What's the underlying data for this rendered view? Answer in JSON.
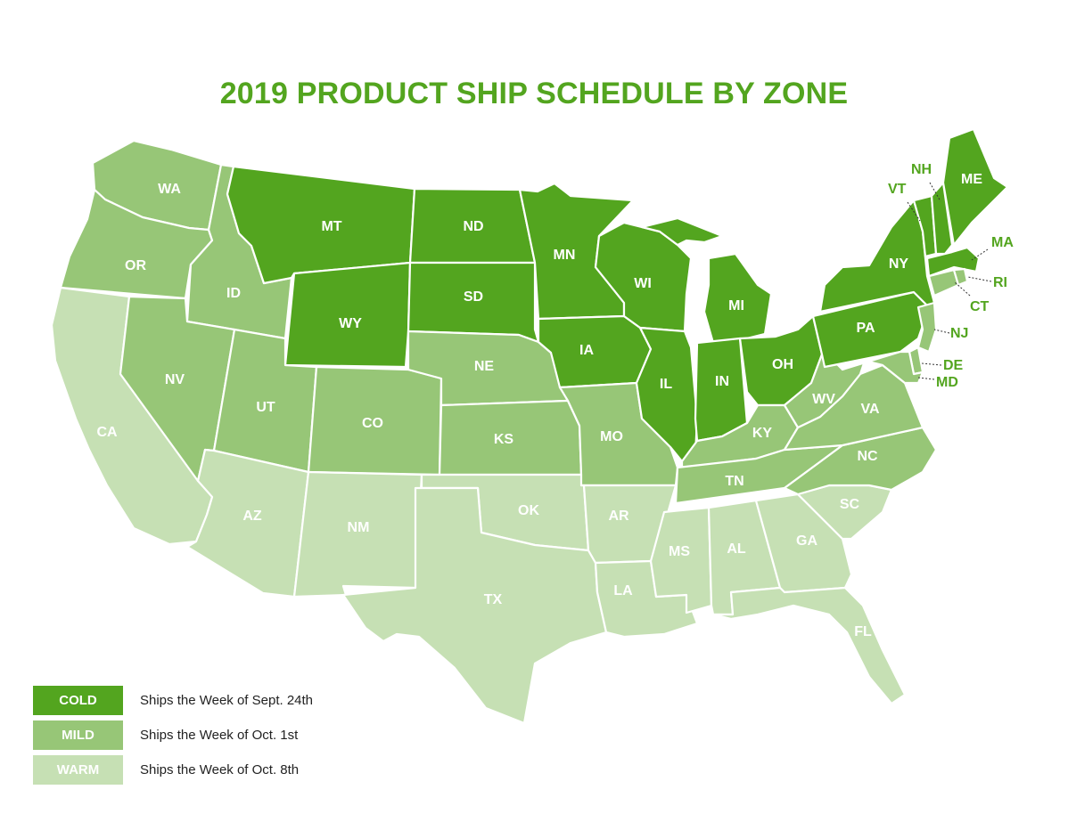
{
  "title": "2019 PRODUCT SHIP SCHEDULE BY ZONE",
  "colors": {
    "cold": "#53a51f",
    "mild": "#97c677",
    "warm": "#c6e0b4"
  },
  "zones": [
    {
      "key": "cold",
      "label": "COLD",
      "description": "Ships the Week of Sept. 24th"
    },
    {
      "key": "mild",
      "label": "MILD",
      "description": "Ships the Week of Oct. 1st"
    },
    {
      "key": "warm",
      "label": "WARM",
      "description": "Ships the Week of Oct. 8th"
    }
  ],
  "states": [
    {
      "code": "WA",
      "zone": "mild"
    },
    {
      "code": "OR",
      "zone": "mild"
    },
    {
      "code": "CA",
      "zone": "warm"
    },
    {
      "code": "ID",
      "zone": "mild"
    },
    {
      "code": "NV",
      "zone": "mild"
    },
    {
      "code": "MT",
      "zone": "cold"
    },
    {
      "code": "WY",
      "zone": "cold"
    },
    {
      "code": "UT",
      "zone": "mild"
    },
    {
      "code": "AZ",
      "zone": "warm"
    },
    {
      "code": "CO",
      "zone": "mild"
    },
    {
      "code": "NM",
      "zone": "warm"
    },
    {
      "code": "ND",
      "zone": "cold"
    },
    {
      "code": "SD",
      "zone": "cold"
    },
    {
      "code": "NE",
      "zone": "mild"
    },
    {
      "code": "KS",
      "zone": "mild"
    },
    {
      "code": "OK",
      "zone": "warm"
    },
    {
      "code": "TX",
      "zone": "warm"
    },
    {
      "code": "MN",
      "zone": "cold"
    },
    {
      "code": "IA",
      "zone": "cold"
    },
    {
      "code": "MO",
      "zone": "mild"
    },
    {
      "code": "AR",
      "zone": "warm"
    },
    {
      "code": "LA",
      "zone": "warm"
    },
    {
      "code": "WI",
      "zone": "cold"
    },
    {
      "code": "IL",
      "zone": "cold"
    },
    {
      "code": "MI",
      "zone": "cold"
    },
    {
      "code": "IN",
      "zone": "cold"
    },
    {
      "code": "OH",
      "zone": "cold"
    },
    {
      "code": "KY",
      "zone": "mild"
    },
    {
      "code": "TN",
      "zone": "mild"
    },
    {
      "code": "MS",
      "zone": "warm"
    },
    {
      "code": "AL",
      "zone": "warm"
    },
    {
      "code": "GA",
      "zone": "warm"
    },
    {
      "code": "FL",
      "zone": "warm"
    },
    {
      "code": "SC",
      "zone": "warm"
    },
    {
      "code": "NC",
      "zone": "mild"
    },
    {
      "code": "VA",
      "zone": "mild"
    },
    {
      "code": "WV",
      "zone": "mild"
    },
    {
      "code": "PA",
      "zone": "cold"
    },
    {
      "code": "NY",
      "zone": "cold"
    },
    {
      "code": "VT",
      "zone": "cold"
    },
    {
      "code": "NH",
      "zone": "cold"
    },
    {
      "code": "ME",
      "zone": "cold"
    },
    {
      "code": "MA",
      "zone": "cold"
    },
    {
      "code": "RI",
      "zone": "mild"
    },
    {
      "code": "CT",
      "zone": "mild"
    },
    {
      "code": "NJ",
      "zone": "mild"
    },
    {
      "code": "DE",
      "zone": "mild"
    },
    {
      "code": "MD",
      "zone": "mild"
    }
  ]
}
